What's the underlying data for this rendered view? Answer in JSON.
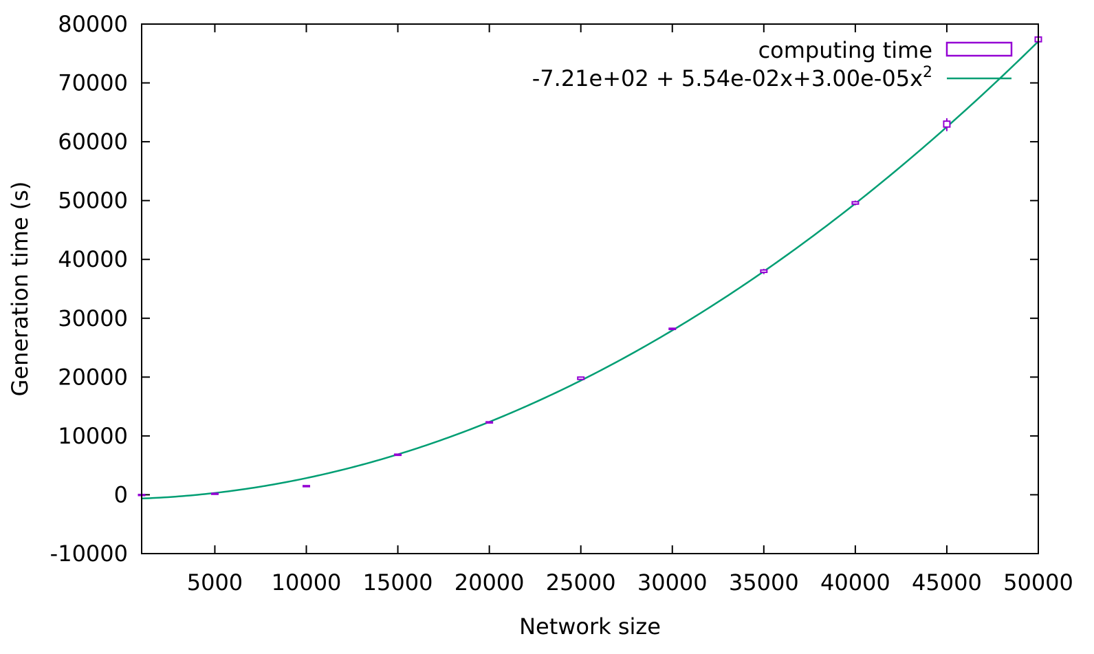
{
  "chart_data": {
    "type": "scatter",
    "title": "",
    "xlabel": "Network size",
    "ylabel": "Generation time (s)",
    "xlim": [
      1000,
      50000
    ],
    "ylim": [
      -10000,
      80000
    ],
    "grid": false,
    "legend_position": "top-right",
    "x_ticks": [
      5000,
      10000,
      15000,
      20000,
      25000,
      30000,
      35000,
      40000,
      45000,
      50000
    ],
    "x_tick_labels": [
      "5000",
      "10000",
      "15000",
      "20000",
      "25000",
      "30000",
      "35000",
      "40000",
      "45000",
      "50000"
    ],
    "y_ticks": [
      -10000,
      0,
      10000,
      20000,
      30000,
      40000,
      50000,
      60000,
      70000,
      80000
    ],
    "y_tick_labels": [
      "-10000",
      "0",
      "10000",
      "20000",
      "30000",
      "40000",
      "50000",
      "60000",
      "70000",
      "80000"
    ],
    "series": [
      {
        "name": "computing time",
        "style": "candlestick",
        "color": "#9400d3",
        "x": [
          1000,
          5000,
          10000,
          15000,
          20000,
          25000,
          30000,
          35000,
          40000,
          45000,
          50000
        ],
        "y": [
          0,
          200,
          1500,
          6800,
          12300,
          19800,
          28200,
          38000,
          49600,
          63000,
          77400
        ],
        "box_low": [
          -50,
          150,
          1450,
          6700,
          12200,
          19600,
          28100,
          37800,
          49400,
          62500,
          77000
        ],
        "box_high": [
          50,
          250,
          1550,
          6900,
          12400,
          20000,
          28300,
          38200,
          49800,
          63500,
          77800
        ],
        "whisker_low": [
          -100,
          100,
          1400,
          6600,
          12100,
          19500,
          28000,
          37500,
          49200,
          61800,
          76900
        ],
        "whisker_high": [
          100,
          300,
          1600,
          7000,
          12500,
          20100,
          28400,
          38400,
          50000,
          64000,
          77900
        ]
      },
      {
        "name_parts": [
          "-7.21e+02 + 5.54e-02x+3.00e-05x",
          "2"
        ],
        "style": "line",
        "color": "#009e73",
        "coefficients": [
          -721,
          0.0554,
          3e-05
        ]
      }
    ]
  }
}
